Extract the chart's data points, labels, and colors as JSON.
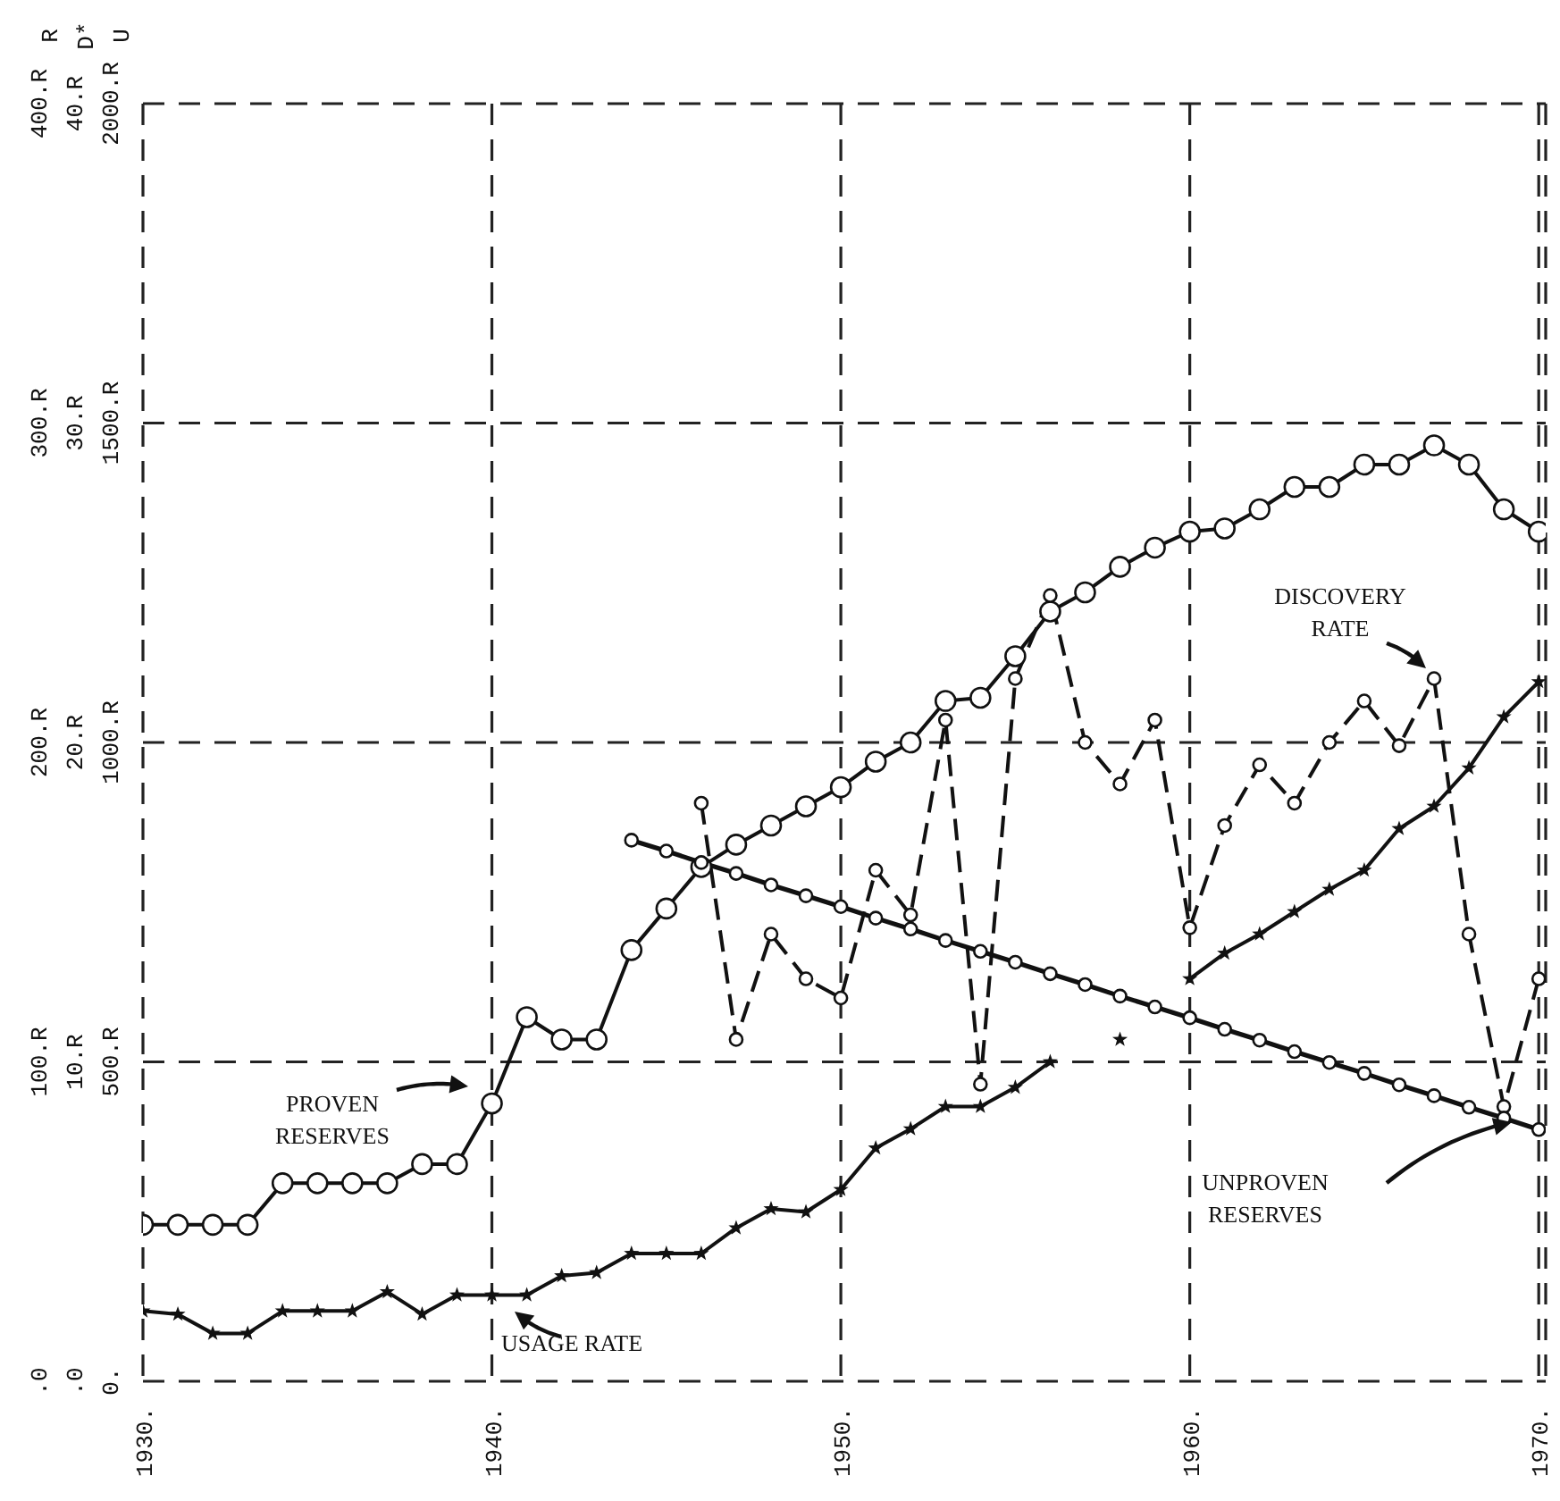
{
  "chart_data": {
    "type": "line",
    "x": [
      1930,
      1931,
      1932,
      1933,
      1934,
      1935,
      1936,
      1937,
      1938,
      1939,
      1940,
      1941,
      1942,
      1943,
      1944,
      1945,
      1946,
      1947,
      1948,
      1949,
      1950,
      1951,
      1952,
      1953,
      1954,
      1955,
      1956,
      1957,
      1958,
      1959,
      1960,
      1961,
      1962,
      1963,
      1964,
      1965,
      1966,
      1967,
      1968,
      1969,
      1970
    ],
    "series": [
      {
        "color": "#111111",
        "axis": "y3",
        "marker": "circle",
        "line_style": "solid",
        "values": [
          49,
          49,
          49,
          49,
          62,
          62,
          62,
          62,
          68,
          68,
          87,
          114,
          107,
          107,
          135,
          148,
          161,
          168,
          174,
          180,
          186,
          194,
          200,
          213,
          214,
          227,
          241,
          247,
          255,
          261,
          266,
          267,
          273,
          280,
          280,
          287,
          287,
          293,
          287,
          273,
          266
        ]
      },
      {
        "color": "#111111",
        "axis": "y2",
        "marker": "star",
        "line_style": "solid",
        "values": [
          2.2,
          2.1,
          1.5,
          1.5,
          2.2,
          2.2,
          2.2,
          2.8,
          2.1,
          2.7,
          2.7,
          2.7,
          3.3,
          3.4,
          4.0,
          4.0,
          4.0,
          4.8,
          5.4,
          5.3,
          6.0,
          7.3,
          7.9,
          8.6,
          8.6,
          9.2,
          10.0,
          null,
          10.7,
          null,
          12.6,
          13.4,
          14.0,
          14.7,
          15.4,
          16.0,
          17.3,
          18.0,
          19.2,
          20.8,
          21.9
        ]
      },
      {
        "color": "#111111",
        "axis": "y2",
        "marker": "circle",
        "line_style": "dashed",
        "values": [
          null,
          null,
          null,
          null,
          null,
          null,
          null,
          null,
          null,
          null,
          null,
          null,
          null,
          null,
          null,
          null,
          18.1,
          10.7,
          14.0,
          12.6,
          12.0,
          16.0,
          14.6,
          20.7,
          9.3,
          22.0,
          24.6,
          20.0,
          18.7,
          20.7,
          14.2,
          17.4,
          19.3,
          18.1,
          20.0,
          21.3,
          19.9,
          22.0,
          14.0,
          8.6,
          12.6
        ]
      },
      {
        "color": "#111111",
        "axis": "y",
        "marker": "circle",
        "line_style": "solid",
        "values": [
          null,
          null,
          null,
          null,
          null,
          null,
          null,
          null,
          null,
          null,
          null,
          null,
          null,
          null,
          847,
          830,
          812,
          795,
          777,
          760,
          743,
          725,
          708,
          690,
          673,
          656,
          638,
          621,
          603,
          586,
          569,
          551,
          534,
          516,
          499,
          482,
          464,
          447,
          429,
          412,
          394
        ]
      }
    ],
    "xlim": [
      1930,
      1970.2
    ],
    "xticks": [
      {
        "value": 1930,
        "label": "1930."
      },
      {
        "value": 1940,
        "label": "1940."
      },
      {
        "value": 1950,
        "label": "1950."
      },
      {
        "value": 1960,
        "label": "1960."
      },
      {
        "value": 1970,
        "label": "1970."
      }
    ],
    "ylim": [
      0,
      2000
    ],
    "yticks": [
      {
        "value": 0,
        "label": "0."
      },
      {
        "value": 500,
        "label": "500.R"
      },
      {
        "value": 1000,
        "label": "1000.R"
      },
      {
        "value": 1500,
        "label": "1500.R"
      },
      {
        "value": 2000,
        "label": "2000.R"
      }
    ],
    "ylabel": "U",
    "y2lim": [
      0,
      40
    ],
    "y2ticks": [
      {
        "value": 0,
        "label": ".0"
      },
      {
        "value": 10,
        "label": "10.R"
      },
      {
        "value": 20,
        "label": "20.R"
      },
      {
        "value": 30,
        "label": "30.R"
      },
      {
        "value": 40,
        "label": "40.R"
      }
    ],
    "y2label": "D*",
    "y3lim": [
      0,
      400
    ],
    "y3ticks": [
      {
        "value": 0,
        "label": ".0"
      },
      {
        "value": 100,
        "label": "100.R"
      },
      {
        "value": 200,
        "label": "200.R"
      },
      {
        "value": 300,
        "label": "300.R"
      },
      {
        "value": 400,
        "label": "400.R"
      }
    ],
    "y3label": "R",
    "grid": true,
    "annotations": [
      "PROVEN RESERVES",
      "USAGE RATE",
      "DISCOVERY RATE",
      "UNPROVEN RESERVES"
    ]
  }
}
